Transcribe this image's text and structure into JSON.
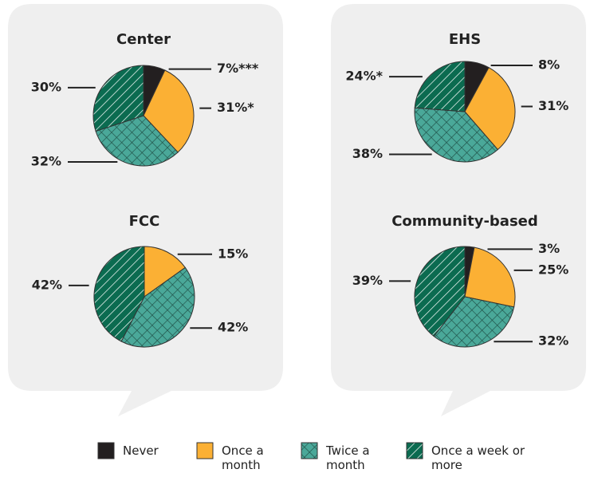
{
  "chart_data": [
    {
      "type": "pie",
      "title": "Center",
      "categories": [
        "Never",
        "Once a month",
        "Twice a month",
        "Once a week or more"
      ],
      "values": [
        7,
        31,
        32,
        30
      ],
      "value_labels": [
        "7%***",
        "31%*",
        "32%",
        "30%"
      ],
      "colors": [
        "#231f20",
        "#fbb034",
        "#4aa899",
        "#0b6b50"
      ],
      "patterns": [
        "none",
        "none",
        "crosshatch",
        "stripes"
      ]
    },
    {
      "type": "pie",
      "title": "EHS",
      "categories": [
        "Never",
        "Once a month",
        "Twice a month",
        "Once a week or more"
      ],
      "values": [
        8,
        31,
        38,
        24
      ],
      "value_labels": [
        "8%",
        "31%",
        "38%",
        "24%*"
      ],
      "colors": [
        "#231f20",
        "#fbb034",
        "#4aa899",
        "#0b6b50"
      ],
      "patterns": [
        "none",
        "none",
        "crosshatch",
        "stripes"
      ]
    },
    {
      "type": "pie",
      "title": "FCC",
      "categories": [
        "Never",
        "Once a month",
        "Twice a month",
        "Once a week or more"
      ],
      "values": [
        0,
        15,
        42,
        42
      ],
      "value_labels": [
        null,
        "15%",
        "42%",
        "42%"
      ],
      "colors": [
        "#231f20",
        "#fbb034",
        "#4aa899",
        "#0b6b50"
      ],
      "patterns": [
        "none",
        "none",
        "crosshatch",
        "stripes"
      ]
    },
    {
      "type": "pie",
      "title": "Community-based",
      "categories": [
        "Never",
        "Once a month",
        "Twice a month",
        "Once a week or more"
      ],
      "values": [
        3,
        25,
        32,
        39
      ],
      "value_labels": [
        "3%",
        "25%",
        "32%",
        "39%"
      ],
      "colors": [
        "#231f20",
        "#fbb034",
        "#4aa899",
        "#0b6b50"
      ],
      "patterns": [
        "none",
        "none",
        "crosshatch",
        "stripes"
      ]
    }
  ]
}
